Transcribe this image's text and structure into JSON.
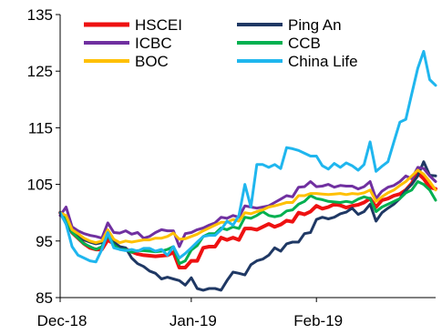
{
  "chart_data": {
    "type": "line",
    "title": "",
    "xlabel": "",
    "ylabel": "",
    "ylim": [
      85,
      135
    ],
    "yticks": [
      "85",
      "95",
      "105",
      "115",
      "125",
      "135"
    ],
    "xticks": [
      {
        "label": "Dec-18",
        "x": 0
      },
      {
        "label": "Jan-19",
        "x": 22
      },
      {
        "label": "Feb-19",
        "x": 43
      }
    ],
    "x_count": 64,
    "grid": false,
    "legend_position": "top-left",
    "legend_columns": 2,
    "series": [
      {
        "name": "HSCEI",
        "color": "#ee1111",
        "width": 4,
        "values": [
          100,
          98.8,
          96.5,
          95.5,
          94.5,
          93.8,
          93.5,
          93.5,
          95.2,
          94.5,
          93.8,
          93.6,
          93.1,
          92.7,
          92.5,
          92.4,
          92.3,
          92.4,
          92.5,
          93,
          90.3,
          90.3,
          91.5,
          91.5,
          93.8,
          94,
          94,
          95.6,
          95.2,
          95.6,
          95.2,
          97.2,
          97.2,
          97,
          97.5,
          98,
          97.5,
          97.9,
          98.6,
          98.4,
          100,
          99.7,
          100.2,
          101.2,
          100.7,
          101,
          101.5,
          101.3,
          100.9,
          101.2,
          101.4,
          101.8,
          102.5,
          101,
          102.2,
          102.5,
          103,
          103.3,
          104,
          105.2,
          107,
          106,
          104.5,
          104.2
        ]
      },
      {
        "name": "Ping An",
        "color": "#1f3864",
        "width": 3,
        "values": [
          100,
          98,
          96.5,
          95.8,
          95.2,
          94.8,
          94.5,
          94.7,
          95.8,
          94.8,
          94,
          93.8,
          92,
          91,
          90.5,
          89.7,
          89.3,
          88.3,
          88.6,
          88.3,
          88,
          87.2,
          88.5,
          86.6,
          86.3,
          86.6,
          86.6,
          86.3,
          88,
          89.5,
          89.3,
          89,
          90.8,
          91.5,
          91.8,
          92.5,
          93.8,
          93.2,
          94.5,
          94.8,
          94.8,
          96.3,
          96.5,
          98.8,
          99.2,
          98.9,
          99.2,
          99.8,
          100.1,
          100.8,
          99.7,
          100.2,
          101.5,
          98.5,
          100,
          100.8,
          101.5,
          102.5,
          104,
          105,
          106.5,
          109,
          106.6,
          106.5
        ]
      },
      {
        "name": "ICBC",
        "color": "#7030a0",
        "width": 3,
        "values": [
          99.5,
          101,
          97.5,
          96.8,
          96.3,
          96,
          95.8,
          95.5,
          98.2,
          96.5,
          96.4,
          96.8,
          96.2,
          96.5,
          95.5,
          95.8,
          96.5,
          97,
          96.8,
          96.8,
          94,
          96.3,
          96.5,
          97,
          97.3,
          97.8,
          98.2,
          99.2,
          99,
          99.5,
          99.2,
          101.2,
          101,
          100.8,
          101,
          101.2,
          101.8,
          102.4,
          103,
          102.8,
          104.5,
          104.6,
          105.5,
          104.6,
          104.7,
          105,
          104.5,
          104.8,
          104.7,
          104.7,
          104.2,
          104.6,
          105.5,
          102.5,
          103.8,
          104.5,
          104.8,
          105.5,
          106.5,
          106,
          108,
          107.8,
          106.5,
          105.5
        ]
      },
      {
        "name": "CCB",
        "color": "#00b050",
        "width": 3,
        "values": [
          100,
          99,
          96.5,
          95.5,
          94.5,
          94,
          93.5,
          94,
          96,
          94.3,
          93.5,
          93.5,
          93,
          93.3,
          93.3,
          93.2,
          93.1,
          93.2,
          93.5,
          94,
          91,
          91.5,
          93.4,
          94.2,
          95.8,
          96.3,
          96.3,
          97.3,
          97,
          97.5,
          97.2,
          99.2,
          99,
          99.5,
          100.2,
          99.5,
          99.3,
          99.5,
          100.3,
          100.5,
          101.5,
          102,
          103,
          102.5,
          102.3,
          102,
          101.9,
          101.8,
          102,
          101.8,
          102.4,
          102.8,
          102.5,
          100.2,
          101,
          101.5,
          102,
          102.5,
          103.5,
          104,
          105.5,
          105,
          104,
          102.2
        ]
      },
      {
        "name": "BOC",
        "color": "#ffc000",
        "width": 3,
        "values": [
          100,
          99.5,
          97,
          96.3,
          95.5,
          95,
          94.7,
          95,
          97,
          95.3,
          94.7,
          95,
          94.8,
          95,
          95.2,
          95.2,
          95.5,
          95.5,
          95.8,
          96.4,
          95.3,
          95.4,
          95.8,
          96.2,
          96.8,
          97.3,
          97.8,
          98.3,
          98.3,
          98.8,
          98.5,
          100,
          99.8,
          100.2,
          100.5,
          101,
          101.2,
          101.5,
          101.8,
          101.8,
          103,
          103,
          103.4,
          103.4,
          103.3,
          103.2,
          103.3,
          103.4,
          103.2,
          103.4,
          103.3,
          103.5,
          104,
          102,
          102.8,
          103.5,
          104,
          104.8,
          105.5,
          106.5,
          107.5,
          106.8,
          105.5,
          104
        ]
      },
      {
        "name": "China Life",
        "color": "#1fb6ee",
        "width": 3,
        "values": [
          100,
          98,
          94,
          92.5,
          92,
          91.5,
          91.3,
          93.5,
          96.5,
          93.8,
          93.5,
          93.3,
          93.5,
          93.2,
          93.7,
          93.7,
          93.2,
          93.5,
          92.5,
          94,
          92,
          92.8,
          93.8,
          94.8,
          95.8,
          96,
          96,
          97,
          98.5,
          97.8,
          99.5,
          105,
          101,
          108.5,
          108.5,
          108,
          108.5,
          107.8,
          111.5,
          111.3,
          111,
          110.5,
          110,
          110,
          108.3,
          107.7,
          108.7,
          108,
          108.8,
          108.3,
          107.5,
          108.5,
          112.5,
          107.3,
          108.2,
          109,
          112.5,
          116,
          116.5,
          121,
          125.5,
          128.5,
          123.5,
          122.5
        ]
      }
    ]
  }
}
